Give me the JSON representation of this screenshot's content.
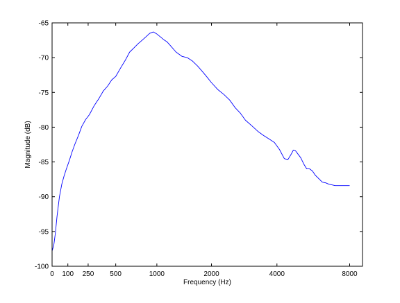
{
  "chart_data": {
    "type": "line",
    "title": "",
    "xlabel": "Frequency (Hz)",
    "ylabel": "Magnitude (dB)",
    "x_scale": "mel",
    "xlim": [
      0,
      9000
    ],
    "ylim": [
      -100,
      -65
    ],
    "x_ticks": [
      0,
      100,
      250,
      500,
      1000,
      2000,
      4000,
      8000
    ],
    "x_tick_labels": [
      "0",
      "100",
      "250",
      "500",
      "1000",
      "2000",
      "4000",
      "8000"
    ],
    "y_ticks": [
      -100,
      -95,
      -90,
      -85,
      -80,
      -75,
      -70,
      -65
    ],
    "y_tick_labels": [
      "-100",
      "-95",
      "-90",
      "-85",
      "-80",
      "-75",
      "-70",
      "-65"
    ],
    "grid": false,
    "legend": "none",
    "line_color": "#0000ff",
    "series": [
      {
        "x": [
          0,
          10,
          20,
          30,
          45,
          60,
          75,
          90,
          110,
          130,
          150,
          175,
          200,
          230,
          260,
          300,
          340,
          380,
          420,
          460,
          500,
          550,
          600,
          650,
          700,
          750,
          800,
          850,
          900,
          950,
          1000,
          1050,
          1100,
          1150,
          1200,
          1300,
          1400,
          1500,
          1600,
          1700,
          1800,
          1900,
          2000,
          2150,
          2300,
          2450,
          2600,
          2750,
          2900,
          3100,
          3300,
          3500,
          3700,
          3900,
          4100,
          4300,
          4450,
          4600,
          4700,
          4800,
          4900,
          5050,
          5200,
          5350,
          5500,
          5650,
          5800,
          6000,
          6200,
          6400,
          6600,
          6800,
          7000,
          7200,
          7400,
          7600,
          7800,
          8000
        ],
        "y": [
          -97.8,
          -97.0,
          -95.2,
          -92.8,
          -90.0,
          -88.2,
          -87.0,
          -86.0,
          -84.8,
          -83.5,
          -82.4,
          -81.2,
          -79.9,
          -78.9,
          -78.2,
          -76.9,
          -75.9,
          -74.8,
          -74.1,
          -73.2,
          -72.7,
          -71.5,
          -70.4,
          -69.2,
          -68.6,
          -68.0,
          -67.5,
          -67.0,
          -66.5,
          -66.3,
          -66.6,
          -67.0,
          -67.4,
          -67.7,
          -68.2,
          -69.2,
          -69.8,
          -70.0,
          -70.5,
          -71.2,
          -72.0,
          -72.8,
          -73.6,
          -74.6,
          -75.3,
          -76.1,
          -77.2,
          -78.0,
          -79.0,
          -79.8,
          -80.6,
          -81.2,
          -81.7,
          -82.2,
          -83.2,
          -84.5,
          -84.7,
          -83.9,
          -83.3,
          -83.4,
          -83.8,
          -84.4,
          -85.3,
          -86.0,
          -86.0,
          -86.3,
          -86.9,
          -87.4,
          -87.9,
          -88.0,
          -88.2,
          -88.3,
          -88.4,
          -88.4,
          -88.4,
          -88.4,
          -88.4,
          -88.4
        ]
      }
    ]
  }
}
